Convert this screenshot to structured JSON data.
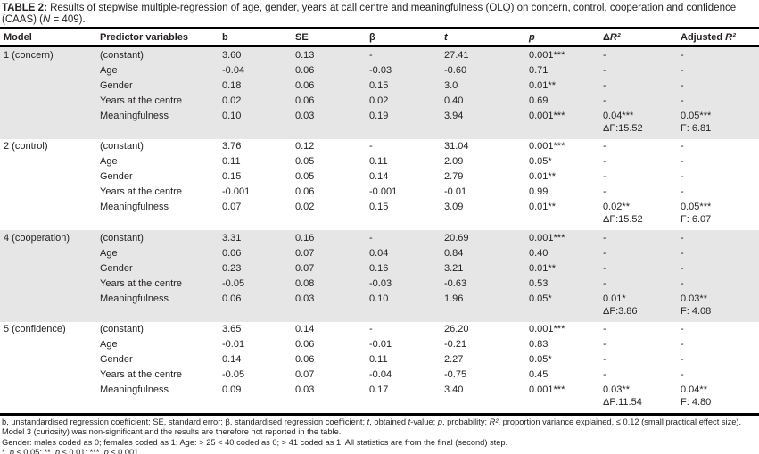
{
  "title": {
    "prefix": "TABLE 2:",
    "text": "Results of stepwise multiple-regression of age, gender, years at call centre and meaningfulness (OLQ) on concern, control, cooperation and confidence (CAAS) (N = 409)."
  },
  "columns": [
    "Model",
    "Predictor variables",
    "b",
    "SE",
    "β",
    "t",
    "p",
    "ΔR²",
    "Adjusted R²"
  ],
  "models": [
    {
      "label": "1 (concern)",
      "rows": [
        {
          "predictor": "(constant)",
          "b": "3.60",
          "se": "0.13",
          "beta": "-",
          "t": "27.41",
          "p": "0.001***",
          "dr2": "-",
          "adj": "-"
        },
        {
          "predictor": "Age",
          "b": "-0.04",
          "se": "0.06",
          "beta": "-0.03",
          "t": "-0.60",
          "p": "0.71",
          "dr2": "-",
          "adj": "-"
        },
        {
          "predictor": "Gender",
          "b": "0.18",
          "se": "0.06",
          "beta": "0.15",
          "t": "3.0",
          "p": "0.01**",
          "dr2": "-",
          "adj": "-"
        },
        {
          "predictor": "Years at the centre",
          "b": "0.02",
          "se": "0.06",
          "beta": "0.02",
          "t": "0.40",
          "p": "0.69",
          "dr2": "-",
          "adj": "-"
        },
        {
          "predictor": "Meaningfulness",
          "b": "0.10",
          "se": "0.03",
          "beta": "0.19",
          "t": "3.94",
          "p": "0.001***",
          "dr2": "0.04***\nΔF:15.52",
          "adj": "0.05***\nF: 6.81"
        }
      ]
    },
    {
      "label": "2 (control)",
      "rows": [
        {
          "predictor": "(constant)",
          "b": "3.76",
          "se": "0.12",
          "beta": "-",
          "t": "31.04",
          "p": "0.001***",
          "dr2": "-",
          "adj": "-"
        },
        {
          "predictor": "Age",
          "b": "0.11",
          "se": "0.05",
          "beta": "0.11",
          "t": "2.09",
          "p": "0.05*",
          "dr2": "-",
          "adj": "-"
        },
        {
          "predictor": "Gender",
          "b": "0.15",
          "se": "0.05",
          "beta": "0.14",
          "t": "2.79",
          "p": "0.01**",
          "dr2": "-",
          "adj": "-"
        },
        {
          "predictor": "Years at the centre",
          "b": "-0.001",
          "se": "0.06",
          "beta": "-0.001",
          "t": "-0.01",
          "p": "0.99",
          "dr2": "-",
          "adj": "-"
        },
        {
          "predictor": "Meaningfulness",
          "b": "0.07",
          "se": "0.02",
          "beta": "0.15",
          "t": "3.09",
          "p": "0.01**",
          "dr2": "0.02**\nΔF:15.52",
          "adj": "0.05***\nF: 6.07"
        }
      ]
    },
    {
      "label": "4 (cooperation)",
      "rows": [
        {
          "predictor": "(constant)",
          "b": "3.31",
          "se": "0.16",
          "beta": "-",
          "t": "20.69",
          "p": "0.001***",
          "dr2": "-",
          "adj": "-"
        },
        {
          "predictor": "Age",
          "b": "0.06",
          "se": "0.07",
          "beta": "0.04",
          "t": "0.84",
          "p": "0.40",
          "dr2": "-",
          "adj": "-"
        },
        {
          "predictor": "Gender",
          "b": "0.23",
          "se": "0.07",
          "beta": "0.16",
          "t": "3.21",
          "p": "0.01**",
          "dr2": "-",
          "adj": "-"
        },
        {
          "predictor": "Years at the centre",
          "b": "-0.05",
          "se": "0.08",
          "beta": "-0.03",
          "t": "-0.63",
          "p": "0.53",
          "dr2": "-",
          "adj": "-"
        },
        {
          "predictor": "Meaningfulness",
          "b": "0.06",
          "se": "0.03",
          "beta": "0.10",
          "t": "1.96",
          "p": "0.05*",
          "dr2": "0.01*\nΔF:3.86",
          "adj": "0.03**\nF: 4.08"
        }
      ]
    },
    {
      "label": "5 (confidence)",
      "rows": [
        {
          "predictor": "(constant)",
          "b": "3.65",
          "se": "0.14",
          "beta": "-",
          "t": "26.20",
          "p": "0.001***",
          "dr2": "-",
          "adj": "-"
        },
        {
          "predictor": "Age",
          "b": "-0.01",
          "se": "0.06",
          "beta": "-0.01",
          "t": "-0.21",
          "p": "0.83",
          "dr2": "-",
          "adj": "-"
        },
        {
          "predictor": "Gender",
          "b": "0.14",
          "se": "0.06",
          "beta": "0.11",
          "t": "2.27",
          "p": "0.05*",
          "dr2": "-",
          "adj": "-"
        },
        {
          "predictor": "Years at the centre",
          "b": "-0.05",
          "se": "0.07",
          "beta": "-0.04",
          "t": "-0.75",
          "p": "0.45",
          "dr2": "-",
          "adj": "-"
        },
        {
          "predictor": "Meaningfulness",
          "b": "0.09",
          "se": "0.03",
          "beta": "0.17",
          "t": "3.40",
          "p": "0.001***",
          "dr2": "0.03**\nΔF:11.54",
          "adj": "0.04**\nF: 4.80"
        }
      ]
    }
  ],
  "footnotes": [
    "b, unstandardised regression coefficient; SE, standard error; β, standardised regression coefficient; t, obtained t-value; p, probability; R², proportion variance explained, ≤ 0.12 (small practical effect size).",
    "Model 3 (curiosity) was non-significant and the results are therefore not reported in the table.",
    "Gender: males coded as 0; females coded as 1; Age: > 25 < 40 coded as 0; > 41 coded as 1. All statistics are from the final (second) step.",
    "*, p ≤ 0.05; **, p ≤ 0.01; ***, p ≤ 0.001."
  ],
  "colors": {
    "shaded_block": "#e6e6e6",
    "rule": "#000000",
    "text": "#231f20"
  }
}
